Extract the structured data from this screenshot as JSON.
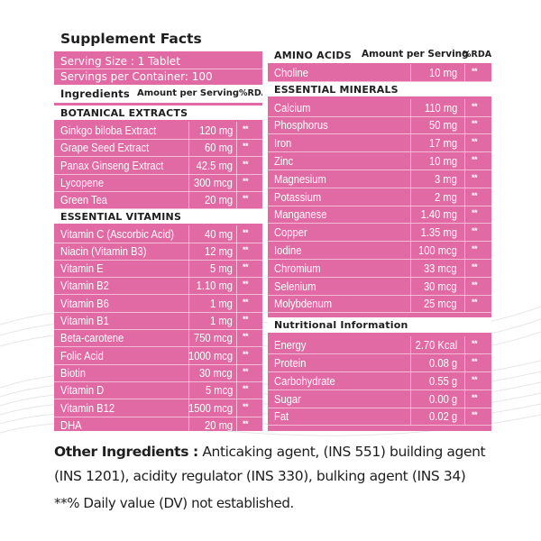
{
  "left": {
    "title": "Supplement Facts",
    "serving_size": "Serving Size : 1 Tablet",
    "servings_per_container": "Servings per Container: 100",
    "header": {
      "ingredients": "Ingredients",
      "amount": "Amount per Serving",
      "rda": "%RDA"
    },
    "sections": [
      {
        "heading": "BOTANICAL EXTRACTS",
        "rows": [
          {
            "name": "Ginkgo biloba Extract",
            "value": "120 mg",
            "rda": "**"
          },
          {
            "name": "Grape Seed Extract",
            "value": "60 mg",
            "rda": "**"
          },
          {
            "name": "Panax Ginseng Extract",
            "value": "42.5 mg",
            "rda": "**"
          },
          {
            "name": "Lycopene",
            "value": "300 mcg",
            "rda": "**"
          },
          {
            "name": "Green Tea",
            "value": "20 mg",
            "rda": "**"
          }
        ]
      },
      {
        "heading": "ESSENTIAL VITAMINS",
        "rows": [
          {
            "name": "Vitamin C (Ascorbic Acid)",
            "value": "40 mg",
            "rda": "**"
          },
          {
            "name": "Niacin (Vitamin B3)",
            "value": "12 mg",
            "rda": "**"
          },
          {
            "name": "Vitamin E",
            "value": "5 mg",
            "rda": "**"
          },
          {
            "name": "Vitamin B2",
            "value": "1.10 mg",
            "rda": "**"
          },
          {
            "name": "Vitamin B6",
            "value": "1 mg",
            "rda": "**"
          },
          {
            "name": "Vitamin B1",
            "value": "1 mg",
            "rda": "**"
          },
          {
            "name": "Beta-carotene",
            "value": "750 mcg",
            "rda": "**"
          },
          {
            "name": "Folic Acid",
            "value": "1000 mcg",
            "rda": "**"
          },
          {
            "name": "Biotin",
            "value": "30 mcg",
            "rda": "**"
          },
          {
            "name": "Vitamin D",
            "value": "5 mcg",
            "rda": "**"
          },
          {
            "name": "Vitamin B12",
            "value": "1500 mcg",
            "rda": "**"
          },
          {
            "name": "DHA",
            "value": "20 mg",
            "rda": "**"
          }
        ]
      }
    ]
  },
  "right": {
    "amino": {
      "heading": "AMINO ACIDS",
      "amount": "Amount per Serving",
      "rda": "%RDA",
      "rows": [
        {
          "name": "Choline",
          "value": "10 mg",
          "rda": "**"
        }
      ]
    },
    "minerals": {
      "heading": "ESSENTIAL MINERALS",
      "rows": [
        {
          "name": "Calcium",
          "value": "110 mg",
          "rda": "**"
        },
        {
          "name": "Phosphorus",
          "value": "50 mg",
          "rda": "**"
        },
        {
          "name": "Iron",
          "value": "17 mg",
          "rda": "**"
        },
        {
          "name": "Zinc",
          "value": "10 mg",
          "rda": "**"
        },
        {
          "name": "Magnesium",
          "value": "3 mg",
          "rda": "**"
        },
        {
          "name": "Potassium",
          "value": "2 mg",
          "rda": "**"
        },
        {
          "name": "Manganese",
          "value": "1.40 mg",
          "rda": "**"
        },
        {
          "name": "Copper",
          "value": "1.35 mg",
          "rda": "**"
        },
        {
          "name": "Iodine",
          "value": "100 mcg",
          "rda": "**"
        },
        {
          "name": "Chromium",
          "value": "33 mcg",
          "rda": "**"
        },
        {
          "name": "Selenium",
          "value": "30 mcg",
          "rda": "**"
        },
        {
          "name": "Molybdenum",
          "value": "25 mcg",
          "rda": "**"
        }
      ]
    },
    "nutrition": {
      "heading": "Nutritional Information",
      "rows": [
        {
          "name": "Energy",
          "value": "2.70 Kcal",
          "rda": "**"
        },
        {
          "name": "Protein",
          "value": "0.08 g",
          "rda": "**"
        },
        {
          "name": "Carbohydrate",
          "value": "0.55 g",
          "rda": "**"
        },
        {
          "name": "Sugar",
          "value": "0.00 g",
          "rda": "**"
        },
        {
          "name": "Fat",
          "value": "0.02 g",
          "rda": "**"
        }
      ]
    }
  },
  "footer": {
    "other_label": "Other Ingredients :",
    "other_text": " Anticaking  agent, (INS 551) building agent (INS 1201), acidity regulator (INS 330), bulking agent (INS 34)",
    "dv_note": "**% Daily value (DV) not established."
  },
  "colors": {
    "panel": "#e26aa4",
    "bar": "#ffffff",
    "text_dark": "#1e1e1e"
  }
}
